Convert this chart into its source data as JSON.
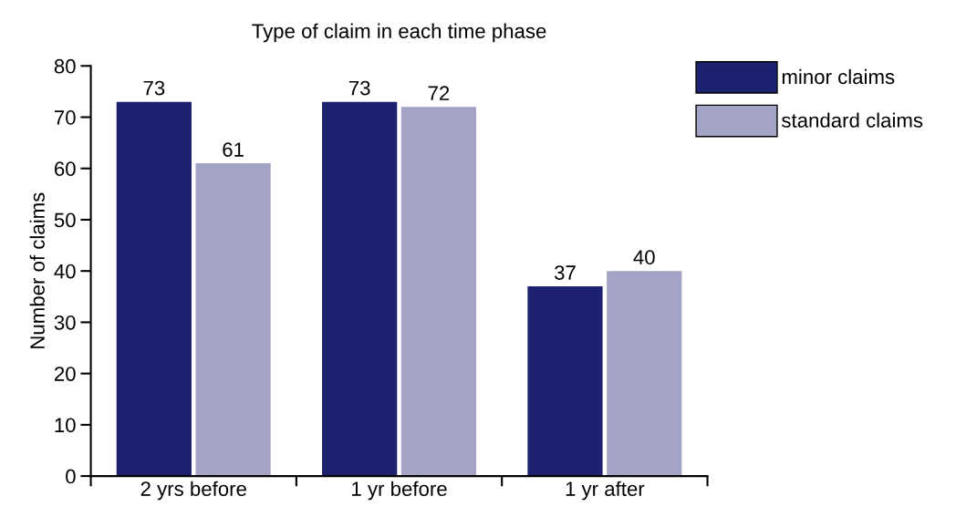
{
  "chart_data": {
    "type": "bar",
    "title": "Type of claim in each time phase",
    "ylabel": "Number of claims",
    "categories": [
      "2 yrs before",
      "1 yr before",
      "1 yr after"
    ],
    "series": [
      {
        "name": "minor claims",
        "color": "#1c2270",
        "values": [
          73,
          73,
          37
        ]
      },
      {
        "name": "standard claims",
        "color": "#a3a3c8",
        "values": [
          61,
          72,
          40
        ]
      }
    ],
    "ylim": [
      0,
      80
    ],
    "yticks": [
      0,
      10,
      20,
      30,
      40,
      50,
      60,
      70,
      80
    ],
    "data_labels": true,
    "grid": false,
    "legend": "top right"
  }
}
